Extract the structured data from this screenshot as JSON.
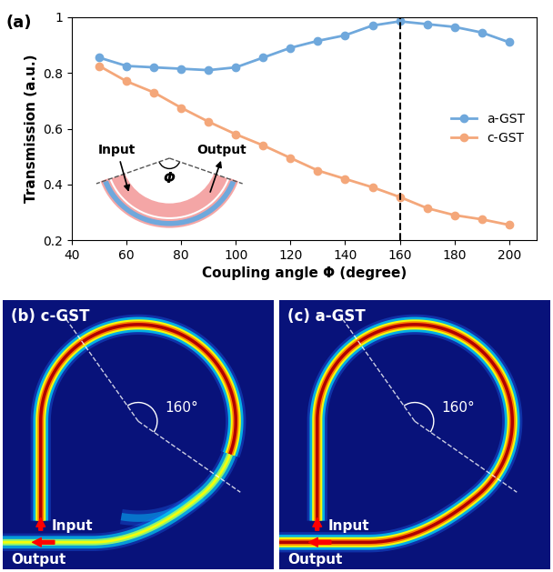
{
  "chart_data": {
    "type": "line",
    "title": "(a)",
    "x_label": "Coupling angle Φ (degree)",
    "y_label": "Transmission (a.u.)",
    "x": [
      50,
      60,
      70,
      80,
      90,
      100,
      110,
      120,
      130,
      140,
      150,
      160,
      170,
      180,
      190,
      200
    ],
    "series": [
      {
        "name": "a-GST",
        "color": "#6fa8dc",
        "marker": "o",
        "values": [
          0.855,
          0.825,
          0.82,
          0.815,
          0.81,
          0.82,
          0.855,
          0.89,
          0.915,
          0.935,
          0.97,
          0.985,
          0.975,
          0.965,
          0.945,
          0.91
        ]
      },
      {
        "name": "c-GST",
        "color": "#f4a77a",
        "marker": "o",
        "values": [
          0.825,
          0.77,
          0.73,
          0.675,
          0.625,
          0.58,
          0.54,
          0.495,
          0.45,
          0.42,
          0.39,
          0.355,
          0.315,
          0.29,
          0.275,
          0.255
        ]
      }
    ],
    "xlim": [
      40,
      210
    ],
    "xticks": [
      40,
      60,
      80,
      100,
      120,
      140,
      160,
      180,
      200
    ],
    "ylim": [
      0.2,
      1
    ],
    "yticks": [
      0.2,
      0.4,
      0.6,
      0.8,
      1
    ],
    "reference_line_x": 160,
    "legend": "center right",
    "grid": false
  },
  "inset": {
    "input": "Input",
    "output": "Output",
    "angle": "Φ"
  },
  "panels": [
    {
      "label": "(b) c-GST",
      "angle_label": "160°",
      "input": "Input",
      "output": "Output"
    },
    {
      "label": "(c) a-GST",
      "angle_label": "160°",
      "input": "Input",
      "output": "Output"
    }
  ]
}
